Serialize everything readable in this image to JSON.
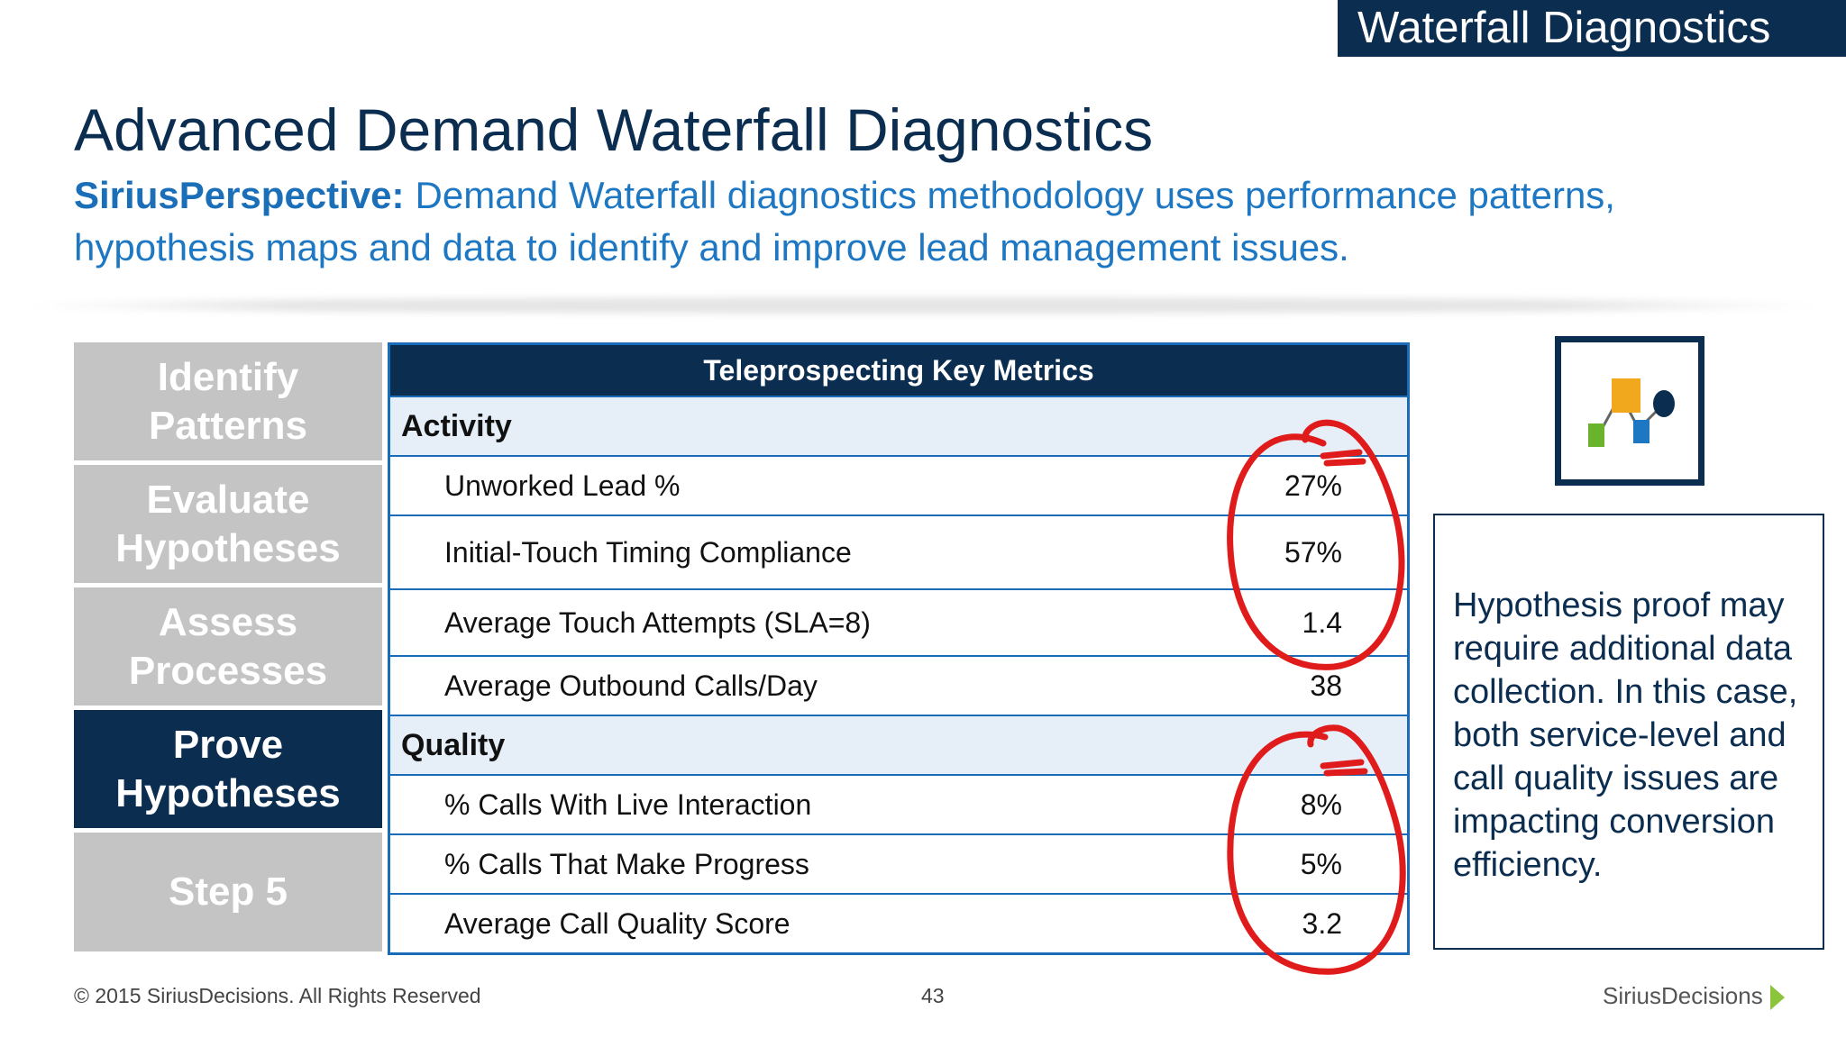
{
  "header": {
    "tag": "Waterfall Diagnostics",
    "title": "Advanced Demand Waterfall Diagnostics",
    "perspective_label": "SiriusPerspective:",
    "perspective_text": "Demand Waterfall diagnostics methodology uses performance patterns, hypothesis maps and data to identify and improve lead management issues."
  },
  "steps": [
    {
      "label": "Identify Patterns"
    },
    {
      "label": "Evaluate Hypotheses"
    },
    {
      "label": "Assess Processes"
    },
    {
      "label": "Prove Hypotheses"
    },
    {
      "label": "Step 5"
    }
  ],
  "table": {
    "title": "Teleprospecting Key Metrics",
    "sections": [
      {
        "name": "Activity",
        "rows": [
          {
            "metric": "Unworked Lead %",
            "value": "27%"
          },
          {
            "metric": "Initial-Touch Timing Compliance",
            "value": "57%"
          },
          {
            "metric": "Average Touch Attempts (SLA=8)",
            "value": "1.4"
          },
          {
            "metric": "Average Outbound Calls/Day",
            "value": "38"
          }
        ]
      },
      {
        "name": "Quality",
        "rows": [
          {
            "metric": "% Calls With Live Interaction",
            "value": "8%"
          },
          {
            "metric": "% Calls That Make Progress",
            "value": "5%"
          },
          {
            "metric": "Average Call Quality Score",
            "value": "3.2"
          }
        ]
      }
    ]
  },
  "note": "Hypothesis proof may require additional data collection. In this case, both service-level and call quality issues are impacting conversion efficiency.",
  "footer": {
    "copyright": "© 2015 SiriusDecisions. All Rights Reserved",
    "page_number": "43",
    "logo": "SiriusDecisions"
  },
  "colors": {
    "navy": "#0b2d50",
    "accent_blue": "#1d77c2",
    "step_gray": "#c4c4c4",
    "annotation_red": "#e01b1b"
  },
  "icons": {
    "diagram": "hypothesis-map-icon"
  }
}
